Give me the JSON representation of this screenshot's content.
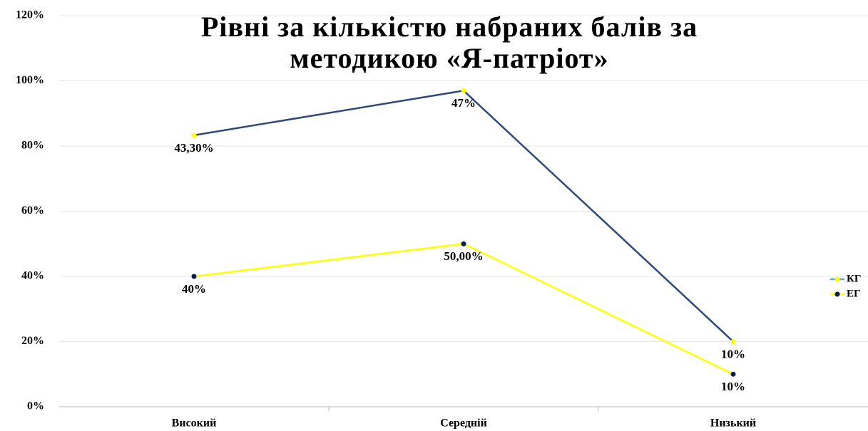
{
  "chart_data": {
    "type": "line",
    "stacked": true,
    "title_lines": [
      "Рівні за кількістю набраних балів за",
      "методикою «Я-патріот»"
    ],
    "categories": [
      "Високий",
      "Середній",
      "Низький"
    ],
    "series": [
      {
        "name": "ЕГ",
        "color": "#ffff00",
        "marker_color": "#0a1f4d",
        "values": [
          40,
          50,
          10
        ],
        "value_labels": [
          "40%",
          "50,00%",
          "10%"
        ]
      },
      {
        "name": "КГ",
        "color": "#2e4a7a",
        "marker_color": "#ffff00",
        "legend_color": "#5fa8d8",
        "values": [
          43.3,
          47,
          10
        ],
        "value_labels": [
          "43,30%",
          "47%",
          "10%"
        ]
      }
    ],
    "ylim": [
      0,
      120
    ],
    "yticks": [
      {
        "value": 0,
        "label": "0%"
      },
      {
        "value": 20,
        "label": "20%"
      },
      {
        "value": 40,
        "label": "40%"
      },
      {
        "value": 60,
        "label": "60%"
      },
      {
        "value": 80,
        "label": "80%"
      },
      {
        "value": 100,
        "label": "100%"
      },
      {
        "value": 120,
        "label": "120%"
      }
    ],
    "grid": true,
    "legend": "right"
  }
}
